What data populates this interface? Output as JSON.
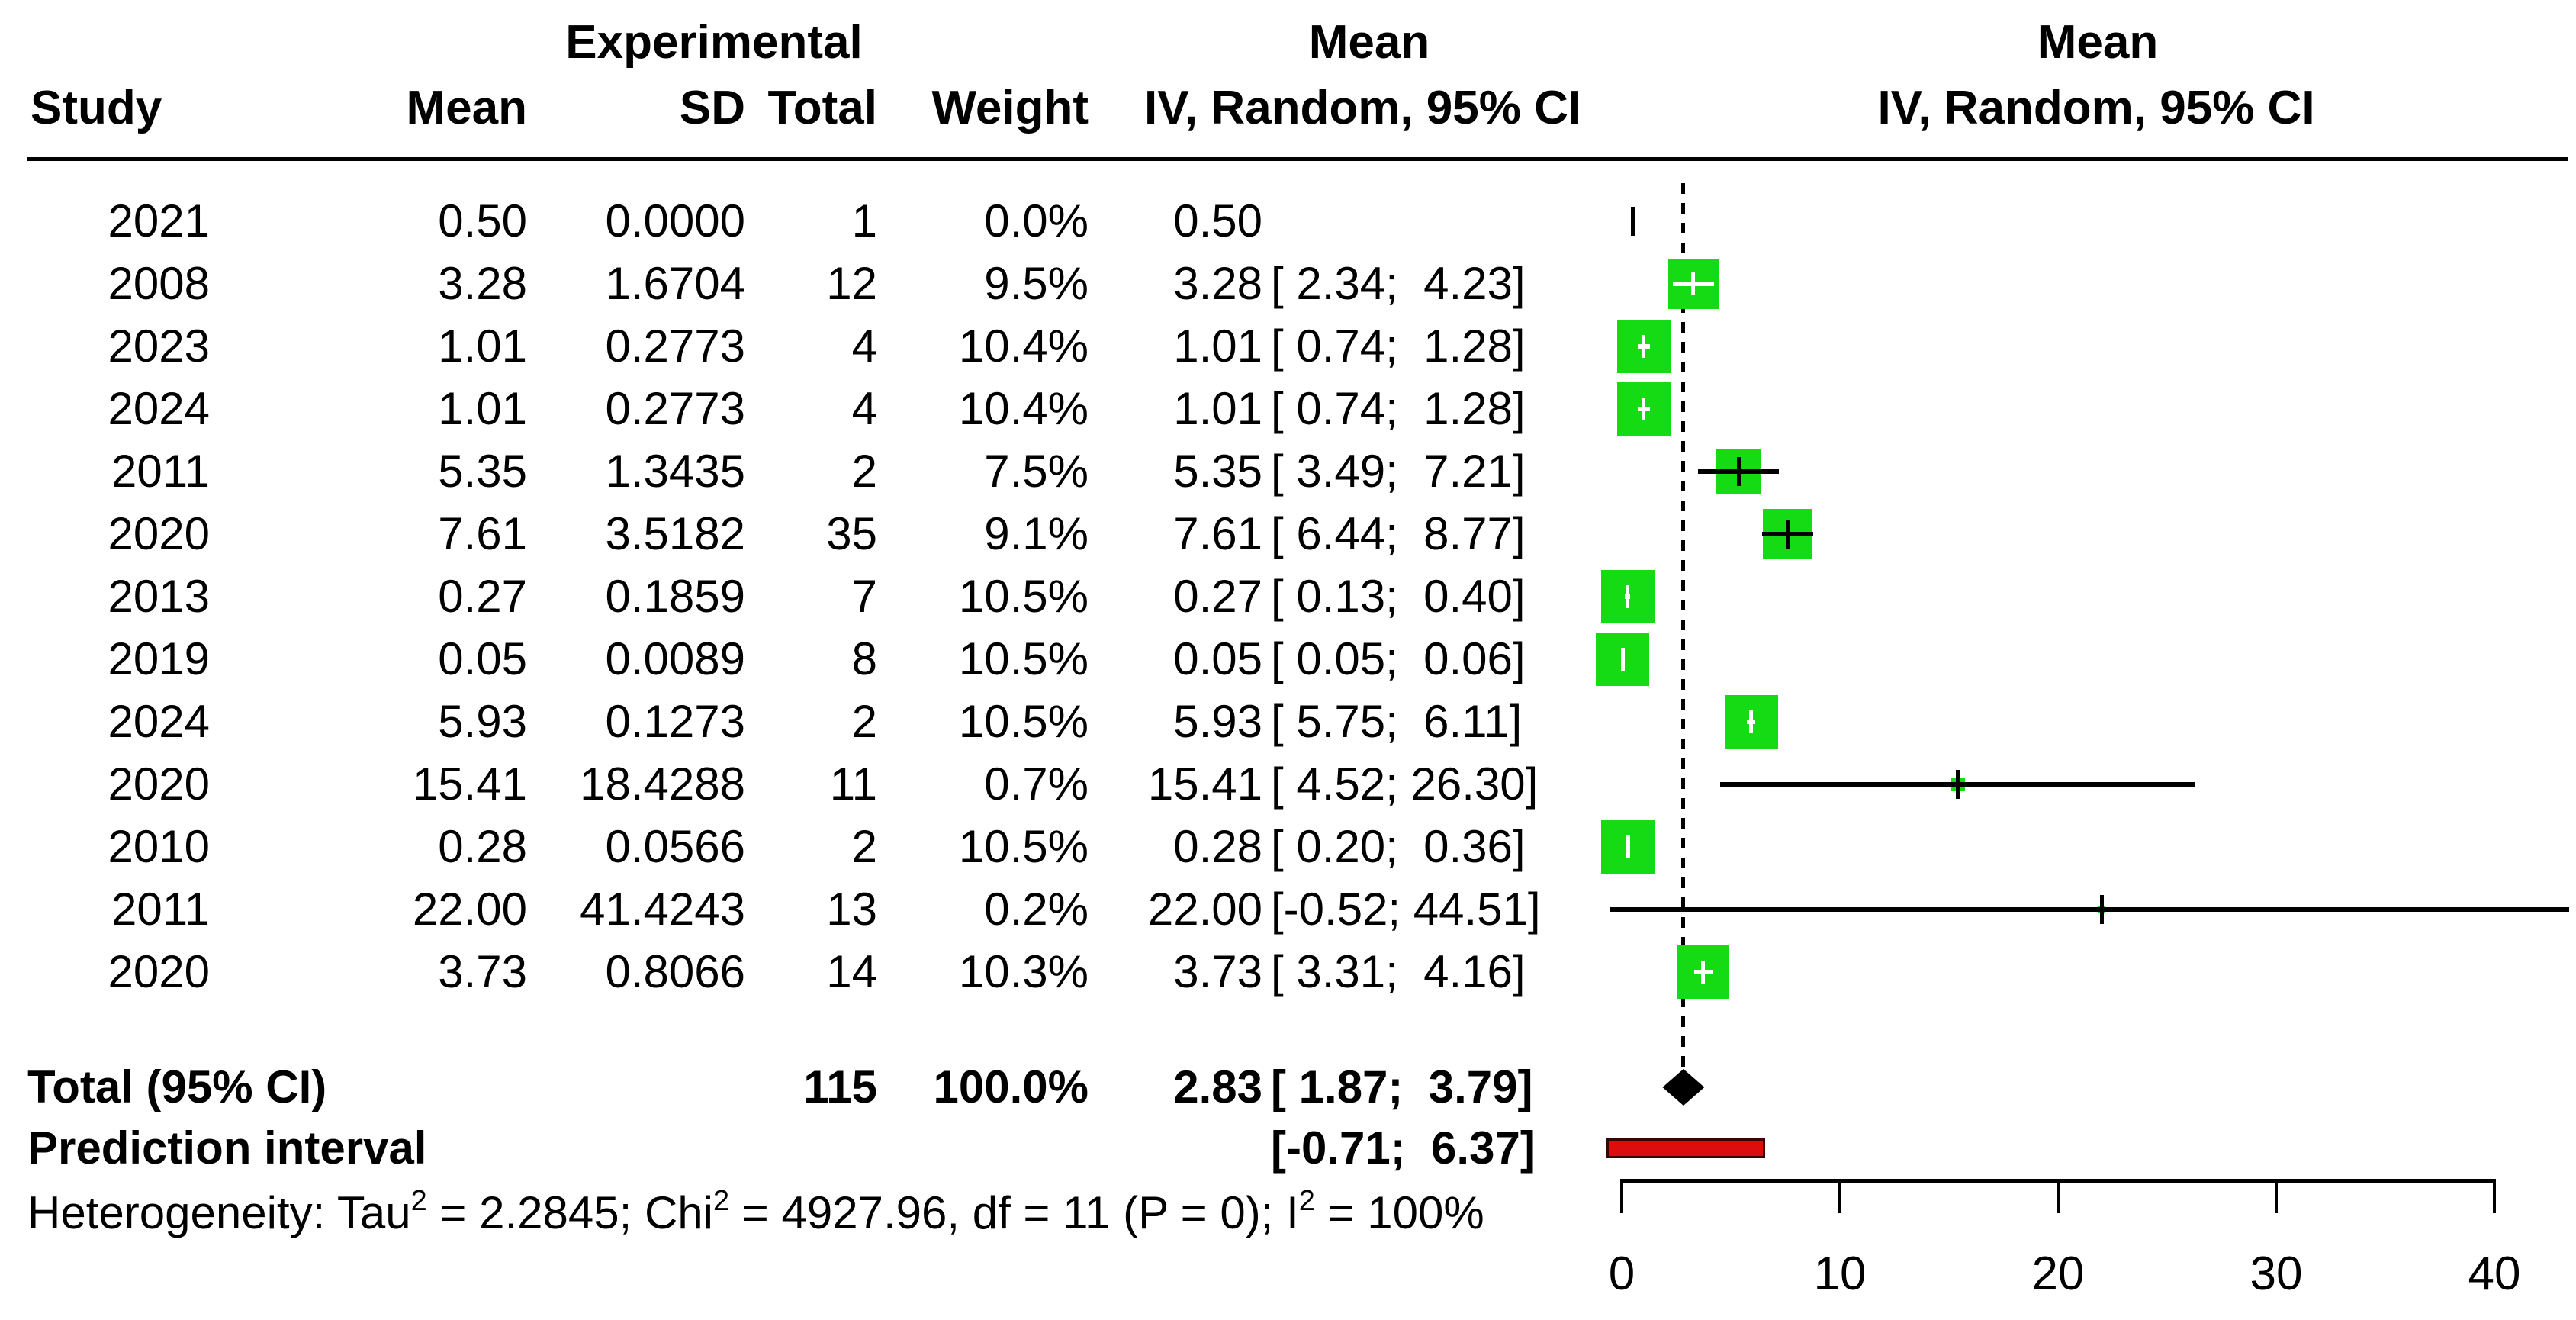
{
  "table": {
    "group_headers": {
      "experimental": "Experimental",
      "mean_ci_text": "Mean",
      "mean_ci_plot": "Mean"
    },
    "columns": {
      "study": "Study",
      "mean": "Mean",
      "sd": "SD",
      "total": "Total",
      "weight": "Weight",
      "iv_random": "IV, Random, 95% CI",
      "iv_random_plot": "IV, Random, 95% CI"
    },
    "rows": [
      {
        "study": "2021",
        "mean": "0.50",
        "sd": "0.0000",
        "total": "1",
        "weight": "0.0%",
        "est": "0.50",
        "bracket": ""
      },
      {
        "study": "2008",
        "mean": "3.28",
        "sd": "1.6704",
        "total": "12",
        "weight": "9.5%",
        "est": "3.28",
        "bracket": "[ 2.34;  4.23]"
      },
      {
        "study": "2023",
        "mean": "1.01",
        "sd": "0.2773",
        "total": "4",
        "weight": "10.4%",
        "est": "1.01",
        "bracket": "[ 0.74;  1.28]"
      },
      {
        "study": "2024",
        "mean": "1.01",
        "sd": "0.2773",
        "total": "4",
        "weight": "10.4%",
        "est": "1.01",
        "bracket": "[ 0.74;  1.28]"
      },
      {
        "study": "2011",
        "mean": "5.35",
        "sd": "1.3435",
        "total": "2",
        "weight": "7.5%",
        "est": "5.35",
        "bracket": "[ 3.49;  7.21]"
      },
      {
        "study": "2020",
        "mean": "7.61",
        "sd": "3.5182",
        "total": "35",
        "weight": "9.1%",
        "est": "7.61",
        "bracket": "[ 6.44;  8.77]"
      },
      {
        "study": "2013",
        "mean": "0.27",
        "sd": "0.1859",
        "total": "7",
        "weight": "10.5%",
        "est": "0.27",
        "bracket": "[ 0.13;  0.40]"
      },
      {
        "study": "2019",
        "mean": "0.05",
        "sd": "0.0089",
        "total": "8",
        "weight": "10.5%",
        "est": "0.05",
        "bracket": "[ 0.05;  0.06]"
      },
      {
        "study": "2024",
        "mean": "5.93",
        "sd": "0.1273",
        "total": "2",
        "weight": "10.5%",
        "est": "5.93",
        "bracket": "[ 5.75;  6.11]"
      },
      {
        "study": "2020",
        "mean": "15.41",
        "sd": "18.4288",
        "total": "11",
        "weight": "0.7%",
        "est": "15.41",
        "bracket": "[ 4.52; 26.30]"
      },
      {
        "study": "2010",
        "mean": "0.28",
        "sd": "0.0566",
        "total": "2",
        "weight": "10.5%",
        "est": "0.28",
        "bracket": "[ 0.20;  0.36]"
      },
      {
        "study": "2011",
        "mean": "22.00",
        "sd": "41.4243",
        "total": "13",
        "weight": "0.2%",
        "est": "22.00",
        "bracket": "[-0.52; 44.51]"
      },
      {
        "study": "2020",
        "mean": "3.73",
        "sd": "0.8066",
        "total": "14",
        "weight": "10.3%",
        "est": "3.73",
        "bracket": "[ 3.31;  4.16]"
      }
    ],
    "total_row": {
      "label": "Total (95% CI)",
      "total": "115",
      "weight": "100.0%",
      "est": "2.83",
      "bracket": "[ 1.87;  3.79]"
    },
    "prediction_row": {
      "label": "Prediction interval",
      "bracket": "[-0.71;  6.37]"
    },
    "heterogeneity_parts": [
      {
        "text": "Heterogeneity: Tau"
      },
      {
        "sup": "2"
      },
      {
        "text": " = 2.2845; Chi"
      },
      {
        "sup": "2"
      },
      {
        "text": " = 4927.96, df = 11 (P = 0); I"
      },
      {
        "sup": "2"
      },
      {
        "text": " = 100%"
      }
    ]
  },
  "chart_data": {
    "type": "forest",
    "effect_measure": "Mean",
    "model": "IV, Random, 95% CI",
    "studies": [
      {
        "study": "2021",
        "mean": 0.5,
        "sd": 0.0,
        "total": 1,
        "weight_pct": 0.0,
        "effect": 0.5,
        "ci_lower": null,
        "ci_upper": null
      },
      {
        "study": "2008",
        "mean": 3.28,
        "sd": 1.6704,
        "total": 12,
        "weight_pct": 9.5,
        "effect": 3.28,
        "ci_lower": 2.34,
        "ci_upper": 4.23
      },
      {
        "study": "2023",
        "mean": 1.01,
        "sd": 0.2773,
        "total": 4,
        "weight_pct": 10.4,
        "effect": 1.01,
        "ci_lower": 0.74,
        "ci_upper": 1.28
      },
      {
        "study": "2024",
        "mean": 1.01,
        "sd": 0.2773,
        "total": 4,
        "weight_pct": 10.4,
        "effect": 1.01,
        "ci_lower": 0.74,
        "ci_upper": 1.28
      },
      {
        "study": "2011",
        "mean": 5.35,
        "sd": 1.3435,
        "total": 2,
        "weight_pct": 7.5,
        "effect": 5.35,
        "ci_lower": 3.49,
        "ci_upper": 7.21
      },
      {
        "study": "2020",
        "mean": 7.61,
        "sd": 3.5182,
        "total": 35,
        "weight_pct": 9.1,
        "effect": 7.61,
        "ci_lower": 6.44,
        "ci_upper": 8.77
      },
      {
        "study": "2013",
        "mean": 0.27,
        "sd": 0.1859,
        "total": 7,
        "weight_pct": 10.5,
        "effect": 0.27,
        "ci_lower": 0.13,
        "ci_upper": 0.4
      },
      {
        "study": "2019",
        "mean": 0.05,
        "sd": 0.0089,
        "total": 8,
        "weight_pct": 10.5,
        "effect": 0.05,
        "ci_lower": 0.05,
        "ci_upper": 0.06
      },
      {
        "study": "2024",
        "mean": 5.93,
        "sd": 0.1273,
        "total": 2,
        "weight_pct": 10.5,
        "effect": 5.93,
        "ci_lower": 5.75,
        "ci_upper": 6.11
      },
      {
        "study": "2020",
        "mean": 15.41,
        "sd": 18.4288,
        "total": 11,
        "weight_pct": 0.7,
        "effect": 15.41,
        "ci_lower": 4.52,
        "ci_upper": 26.3
      },
      {
        "study": "2010",
        "mean": 0.28,
        "sd": 0.0566,
        "total": 2,
        "weight_pct": 10.5,
        "effect": 0.28,
        "ci_lower": 0.2,
        "ci_upper": 0.36
      },
      {
        "study": "2011",
        "mean": 22.0,
        "sd": 41.4243,
        "total": 13,
        "weight_pct": 0.2,
        "effect": 22.0,
        "ci_lower": -0.52,
        "ci_upper": 44.51
      },
      {
        "study": "2020",
        "mean": 3.73,
        "sd": 0.8066,
        "total": 14,
        "weight_pct": 10.3,
        "effect": 3.73,
        "ci_lower": 3.31,
        "ci_upper": 4.16
      }
    ],
    "total": {
      "label": "Total (95% CI)",
      "total": 115,
      "weight_pct": 100.0,
      "effect": 2.83,
      "ci_lower": 1.87,
      "ci_upper": 3.79
    },
    "prediction_interval": {
      "lower": -0.71,
      "upper": 6.37
    },
    "heterogeneity": {
      "tau2": 2.2845,
      "chi2": 4927.96,
      "df": 11,
      "p": "0",
      "i2_pct": 100
    },
    "x_axis": {
      "ticks": [
        0,
        10,
        20,
        30,
        40
      ],
      "range": [
        0,
        40
      ]
    },
    "reference_line": 2.83
  },
  "colors": {
    "square_green": "#15DB15",
    "marker_white": "#FFFFFF",
    "marker_black": "#000000",
    "diamond_black": "#000000",
    "prediction_fill": "#DE0D0D",
    "prediction_border": "#3A0404",
    "line_black": "#000000"
  }
}
